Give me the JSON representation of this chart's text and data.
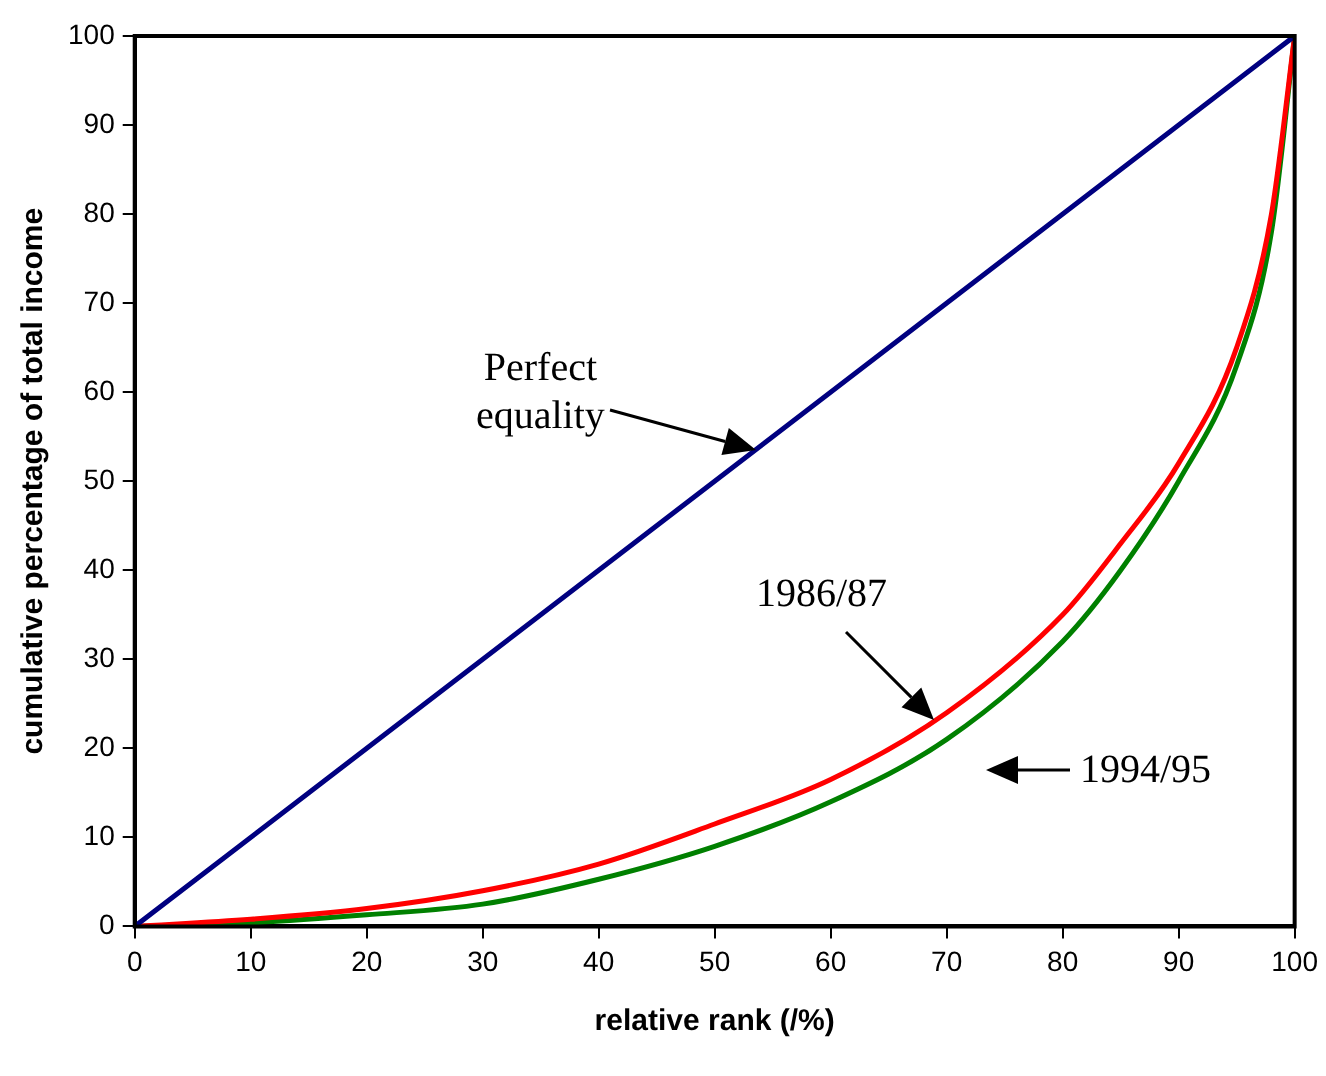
{
  "chart_data": {
    "type": "line",
    "xlabel": "relative rank (/%)",
    "ylabel": "cumulative percentage of total income",
    "xlim": [
      0,
      100
    ],
    "xticks": [
      0,
      10,
      20,
      30,
      40,
      50,
      60,
      70,
      80,
      90,
      100
    ],
    "ylim": [
      0,
      100
    ],
    "yticks": [
      0,
      10,
      20,
      30,
      40,
      50,
      60,
      70,
      80,
      90,
      100
    ],
    "grid": false,
    "legend": false,
    "marker": "none",
    "line_style": "solid",
    "series": [
      {
        "color": "#000080",
        "x": [
          0,
          100
        ],
        "values": [
          0,
          100
        ]
      },
      {
        "color": "#ff0000",
        "x": [
          0,
          10,
          20,
          30,
          40,
          50,
          60,
          70,
          80,
          85,
          90,
          95,
          98,
          100
        ],
        "values": [
          0,
          0.8,
          2,
          4,
          7,
          11.5,
          16.5,
          24,
          35,
          43,
          52,
          65,
          80,
          100
        ]
      },
      {
        "color": "#008000",
        "x": [
          0,
          10,
          20,
          30,
          40,
          50,
          60,
          70,
          80,
          85,
          90,
          95,
          98,
          100
        ],
        "values": [
          0,
          0.4,
          1.3,
          2.5,
          5.3,
          9,
          14,
          21,
          32,
          40,
          50,
          63,
          78,
          100
        ]
      }
    ],
    "annotations": [
      "Perfect\nequality",
      "1986/87",
      "1994/95"
    ]
  }
}
